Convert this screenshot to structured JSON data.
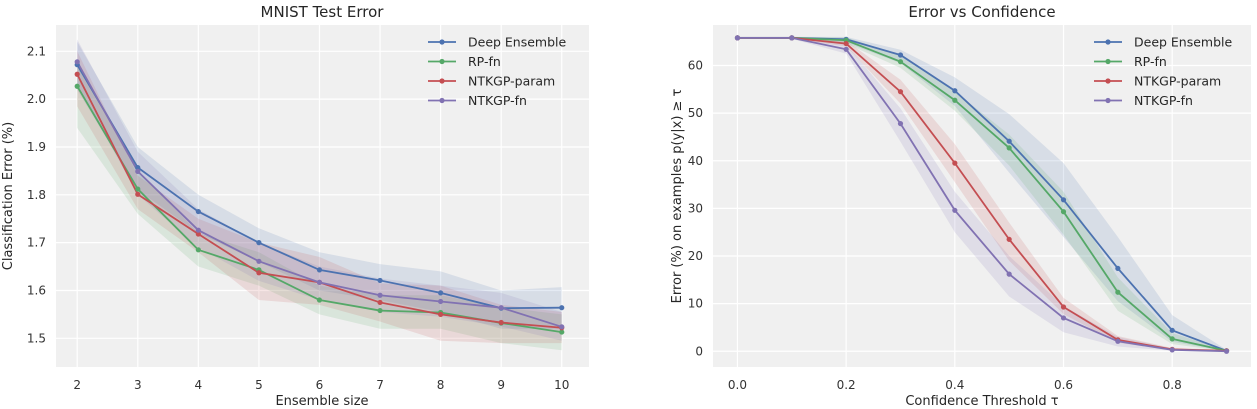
{
  "chart_data": [
    {
      "type": "line",
      "title": "MNIST Test Error",
      "xlabel": "Ensemble size",
      "ylabel": "Classification Error (%)",
      "xlim": [
        1.65,
        10.45
      ],
      "ylim": [
        1.44,
        2.155
      ],
      "xticks": [
        2,
        3,
        4,
        5,
        6,
        7,
        8,
        9,
        10
      ],
      "yticks": [
        1.5,
        1.6,
        1.7,
        1.8,
        1.9,
        2.0,
        2.1
      ],
      "xtick_labels": [
        "2",
        "3",
        "4",
        "5",
        "6",
        "7",
        "8",
        "9",
        "10"
      ],
      "ytick_labels": [
        "1.5",
        "1.6",
        "1.7",
        "1.8",
        "1.9",
        "2.0",
        "2.1"
      ],
      "grid": true,
      "legend_position": "top-right",
      "x": [
        2,
        3,
        4,
        5,
        6,
        7,
        8,
        9,
        10
      ],
      "series": [
        {
          "name": "Deep Ensemble",
          "color": "#4c72b0",
          "values": [
            2.072,
            1.857,
            1.765,
            1.7,
            1.643,
            1.621,
            1.595,
            1.563,
            1.564
          ],
          "lower": [
            2.02,
            1.81,
            1.72,
            1.66,
            1.6,
            1.58,
            1.555,
            1.52,
            1.52
          ],
          "upper": [
            2.12,
            1.9,
            1.8,
            1.73,
            1.68,
            1.655,
            1.64,
            1.6,
            1.607
          ]
        },
        {
          "name": "RP-fn",
          "color": "#55a868",
          "values": [
            2.027,
            1.812,
            1.685,
            1.643,
            1.58,
            1.558,
            1.554,
            1.532,
            1.513
          ],
          "lower": [
            1.94,
            1.76,
            1.65,
            1.61,
            1.55,
            1.52,
            1.52,
            1.49,
            1.475
          ],
          "upper": [
            2.08,
            1.85,
            1.72,
            1.68,
            1.61,
            1.59,
            1.59,
            1.565,
            1.55
          ]
        },
        {
          "name": "NTKGP-param",
          "color": "#c44e52",
          "values": [
            2.052,
            1.801,
            1.718,
            1.637,
            1.617,
            1.575,
            1.55,
            1.533,
            1.522
          ],
          "lower": [
            1.985,
            1.77,
            1.68,
            1.58,
            1.57,
            1.535,
            1.495,
            1.49,
            1.49
          ],
          "upper": [
            2.1,
            1.84,
            1.75,
            1.7,
            1.67,
            1.615,
            1.61,
            1.57,
            1.555
          ]
        },
        {
          "name": "NTKGP-fn",
          "color": "#8172b2",
          "values": [
            2.078,
            1.849,
            1.726,
            1.661,
            1.617,
            1.59,
            1.577,
            1.564,
            1.524
          ],
          "lower": [
            2.03,
            1.8,
            1.69,
            1.62,
            1.58,
            1.555,
            1.545,
            1.525,
            1.495
          ],
          "upper": [
            2.125,
            1.89,
            1.77,
            1.7,
            1.65,
            1.625,
            1.61,
            1.595,
            1.555
          ]
        }
      ]
    },
    {
      "type": "line",
      "title": "Error vs Confidence",
      "xlabel": "Confidence Threshold τ",
      "ylabel": "Error (%) on examples p(y|x) ≥ τ",
      "xlim": [
        -0.045,
        0.945
      ],
      "ylim": [
        -3.3,
        68.5
      ],
      "xticks": [
        0.0,
        0.2,
        0.4,
        0.6,
        0.8
      ],
      "yticks": [
        0,
        10,
        20,
        30,
        40,
        50,
        60
      ],
      "xtick_labels": [
        "0.0",
        "0.2",
        "0.4",
        "0.6",
        "0.8"
      ],
      "ytick_labels": [
        "0",
        "10",
        "20",
        "30",
        "40",
        "50",
        "60"
      ],
      "grid": true,
      "legend_position": "top-right",
      "x": [
        0.0,
        0.1,
        0.2,
        0.3,
        0.4,
        0.5,
        0.6,
        0.7,
        0.8,
        0.9
      ],
      "series": [
        {
          "name": "Deep Ensemble",
          "color": "#4c72b0",
          "values": [
            65.8,
            65.8,
            65.5,
            62.2,
            54.7,
            44.1,
            31.8,
            17.4,
            4.4,
            0.1
          ],
          "lower": [
            65.6,
            65.6,
            64.8,
            60.5,
            51.5,
            37.5,
            24.0,
            10.5,
            2.0,
            0.0
          ],
          "upper": [
            66.0,
            66.0,
            66.0,
            63.3,
            57.5,
            49.8,
            39.5,
            24.0,
            7.6,
            0.3
          ]
        },
        {
          "name": "RP-fn",
          "color": "#55a868",
          "values": [
            65.8,
            65.8,
            65.3,
            60.8,
            52.7,
            42.7,
            29.3,
            12.4,
            2.6,
            0.1
          ],
          "lower": [
            65.6,
            65.6,
            64.6,
            59.5,
            50.5,
            39.0,
            24.5,
            8.5,
            1.5,
            0.0
          ],
          "upper": [
            66.0,
            66.0,
            65.9,
            62.2,
            54.5,
            45.5,
            33.5,
            15.5,
            3.8,
            0.3
          ]
        },
        {
          "name": "NTKGP-param",
          "color": "#c44e52",
          "values": [
            65.8,
            65.8,
            64.6,
            54.5,
            39.5,
            23.5,
            9.3,
            2.4,
            0.4,
            0.1
          ],
          "lower": [
            65.6,
            65.6,
            64.0,
            52.0,
            35.5,
            19.0,
            7.8,
            1.8,
            0.2,
            0.0
          ],
          "upper": [
            66.0,
            66.0,
            65.2,
            57.0,
            43.5,
            27.0,
            11.2,
            3.2,
            0.7,
            0.3
          ]
        },
        {
          "name": "NTKGP-fn",
          "color": "#8172b2",
          "values": [
            65.8,
            65.8,
            63.4,
            47.8,
            29.6,
            16.2,
            7.0,
            2.1,
            0.3,
            0.0
          ],
          "lower": [
            65.6,
            65.6,
            62.5,
            44.0,
            25.0,
            11.5,
            4.0,
            1.0,
            0.1,
            0.0
          ],
          "upper": [
            66.0,
            66.0,
            64.4,
            51.0,
            33.5,
            20.0,
            9.5,
            3.0,
            0.6,
            0.2
          ]
        }
      ]
    }
  ]
}
